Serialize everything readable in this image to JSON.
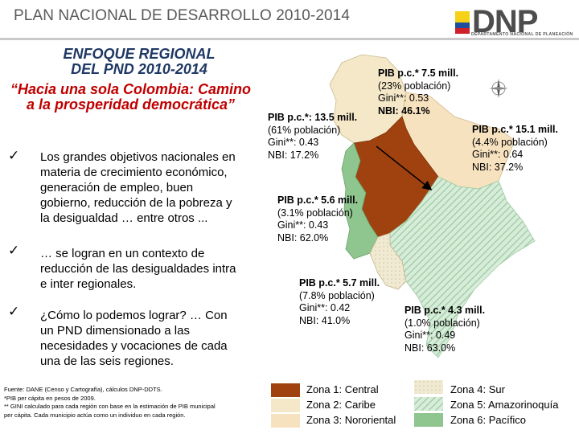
{
  "header": {
    "title": "PLAN NACIONAL DE DESARROLLO 2010-2014",
    "logo_text": "DNP",
    "logo_subtitle": "DEPARTAMENTO NACIONAL DE PLANEACIÓN"
  },
  "left_panel": {
    "title_line1": "ENFOQUE REGIONAL",
    "title_line2": "DEL PND 2010-2014",
    "subtitle_line1": "“Hacia una sola Colombia: Camino",
    "subtitle_line2": "a la prosperidad democrática”",
    "bullets": [
      {
        "lines": [
          "Los grandes objetivos nacionales en",
          "materia de crecimiento económico,",
          "generación de empleo, buen",
          "gobierno, reducción de la pobreza y",
          "la desigualdad … entre otros ..."
        ]
      },
      {
        "lines": [
          "… se logran en un contexto de",
          "reducción de las desigualdades intra",
          "e inter regionales."
        ]
      },
      {
        "lines": [
          "¿Cómo lo podemos lograr? … Con",
          "un PND dimensionado a las",
          "necesidades y vocaciones de cada",
          "una de las seis regiones."
        ]
      }
    ],
    "footnotes": [
      "Fuente: DANE (Censo y Cartografía), cálculos DNP-DDTS.",
      "*PIB per cápita en pesos de 2009.",
      "** GINI calculado para cada región con base en la estimación de PIB municipal",
      "per cápita. Cada municipio actúa como un individuo en cada región."
    ]
  },
  "regions": {
    "caribe": [
      "PIB p.c.* 7.5 mill.",
      "(23% población)",
      "Gini**: 0.53",
      "NBI: 46.1%"
    ],
    "central": [
      "PIB p.c.*: 13.5 mill.",
      "(61% población)",
      "Gini**: 0.43",
      "NBI: 17.2%"
    ],
    "nororiental": [
      "PIB p.c.* 15.1 mill.",
      "(4.4% población)",
      "Gini**: 0.64",
      "NBI: 37.2%"
    ],
    "pacifico": [
      "PIB p.c.* 5.6 mill.",
      "(3.1% población)",
      "Gini**: 0.43",
      "NBI: 62.0%"
    ],
    "sur": [
      "PIB p.c.* 5.7 mill.",
      "(7.8% población)",
      "Gini**: 0.42",
      "NBI: 41.0%"
    ],
    "amazonia": [
      "PIB p.c.* 4.3 mill.",
      "(1.0% población)",
      "Gini**: 0.49",
      "NBI: 63.0%"
    ]
  },
  "legend": {
    "zona1": "Zona 1: Central",
    "zona2": "Zona 2: Caribe",
    "zona3": "Zona 3: Nororiental",
    "zona4": "Zona 4: Sur",
    "zona5": "Zona 5: Amazorinoquía",
    "zona6": "Zona 6: Pacífico"
  },
  "colors": {
    "central": "#a0420f",
    "caribe": "#f4e8c8",
    "nororiental": "#f7e2c0",
    "sur": "#ece4c8",
    "amazonia": "#b7d9bd",
    "pacifico": "#8fc58f",
    "title_blue": "#1f3864",
    "subtitle_red": "#c00000"
  }
}
